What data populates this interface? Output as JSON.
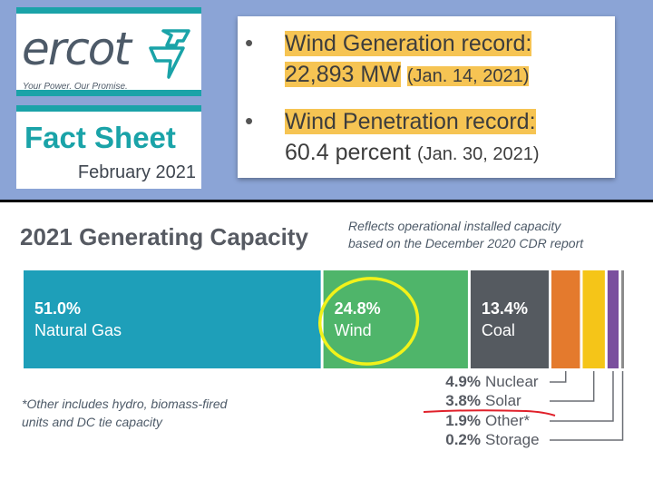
{
  "header": {
    "brand": "ercot",
    "tagline": "Your Power. Our Promise.",
    "fact_sheet_title": "Fact Sheet",
    "fact_sheet_date": "February 2021"
  },
  "records": [
    {
      "label": "Wind Generation record:",
      "value": "22,893 MW",
      "date": "(Jan. 14, 2021)"
    },
    {
      "label": "Wind Penetration record:",
      "value": "60.4 percent",
      "date": "(Jan. 30, 2021)"
    }
  ],
  "chart": {
    "title": "2021 Generating Capacity",
    "note_line1": "Reflects operational installed capacity",
    "note_line2": "based on the December 2020 CDR report",
    "footnote_line1": "*Other includes hydro, biomass-fired",
    "footnote_line2": "units and DC tie capacity"
  },
  "chart_data": {
    "type": "bar",
    "orientation": "horizontal-stacked",
    "title": "2021 Generating Capacity",
    "unit": "percent",
    "categories": [
      "Natural Gas",
      "Wind",
      "Coal",
      "Nuclear",
      "Solar",
      "Other*",
      "Storage"
    ],
    "values": [
      51.0,
      24.8,
      13.4,
      4.9,
      3.8,
      1.9,
      0.2
    ],
    "labels": [
      "51.0%",
      "24.8%",
      "13.4%",
      "4.9%",
      "3.8%",
      "1.9%",
      "0.2%"
    ],
    "colors": [
      "#1e9fb9",
      "#4fb56a",
      "#555a60",
      "#e47a2d",
      "#f5c518",
      "#7a4f9e",
      "#8a8a8a"
    ],
    "legend_placement": "bottom-right"
  },
  "annotations": {
    "wind_circle_color": "#f2f21a",
    "solar_underline_color": "#e0202a"
  }
}
